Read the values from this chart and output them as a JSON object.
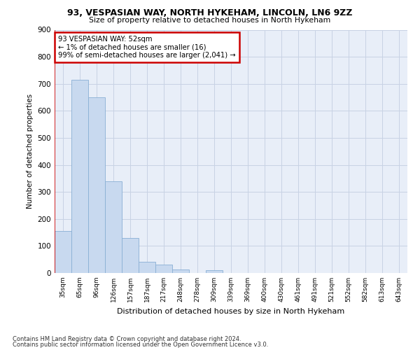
{
  "title1": "93, VESPASIAN WAY, NORTH HYKEHAM, LINCOLN, LN6 9ZZ",
  "title2": "Size of property relative to detached houses in North Hykeham",
  "xlabel": "Distribution of detached houses by size in North Hykeham",
  "ylabel": "Number of detached properties",
  "footnote1": "Contains HM Land Registry data © Crown copyright and database right 2024.",
  "footnote2": "Contains public sector information licensed under the Open Government Licence v3.0.",
  "bar_color": "#c8d9ef",
  "bar_edge_color": "#89afd4",
  "annotation_box_color": "#ffffff",
  "annotation_border_color": "#cc0000",
  "vline_color": "#cc0000",
  "bg_color": "#e8eef8",
  "grid_color": "#c8d2e4",
  "categories": [
    "35sqm",
    "65sqm",
    "96sqm",
    "126sqm",
    "157sqm",
    "187sqm",
    "217sqm",
    "248sqm",
    "278sqm",
    "309sqm",
    "339sqm",
    "369sqm",
    "400sqm",
    "430sqm",
    "461sqm",
    "491sqm",
    "521sqm",
    "552sqm",
    "582sqm",
    "613sqm",
    "643sqm"
  ],
  "values": [
    155,
    715,
    650,
    338,
    130,
    42,
    32,
    13,
    0,
    10,
    0,
    0,
    0,
    0,
    0,
    0,
    0,
    0,
    0,
    0,
    0
  ],
  "ylim": [
    0,
    900
  ],
  "yticks": [
    0,
    100,
    200,
    300,
    400,
    500,
    600,
    700,
    800,
    900
  ],
  "annotation_line1": "93 VESPASIAN WAY: 52sqm",
  "annotation_line2": "← 1% of detached houses are smaller (16)",
  "annotation_line3": "99% of semi-detached houses are larger (2,041) →"
}
